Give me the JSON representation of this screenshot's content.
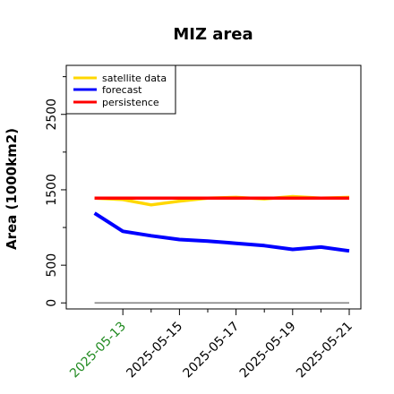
{
  "chart_data": {
    "type": "line",
    "title": "MIZ area",
    "ylabel": "Area (1000km2)",
    "xlabel": "",
    "x": [
      "2025-05-12",
      "2025-05-13",
      "2025-05-14",
      "2025-05-15",
      "2025-05-16",
      "2025-05-17",
      "2025-05-18",
      "2025-05-19",
      "2025-05-20",
      "2025-05-21"
    ],
    "xticks": [
      "2025-05-13",
      "2025-05-15",
      "2025-05-17",
      "2025-05-19",
      "2025-05-21"
    ],
    "xtick_minor": [
      "2025-05-14",
      "2025-05-16",
      "2025-05-18",
      "2025-05-20"
    ],
    "xtick_colors": [
      "#228B22",
      "#000000",
      "#000000",
      "#000000",
      "#000000"
    ],
    "xlim": [
      "2025-05-11",
      "2025-05-21"
    ],
    "yticks": [
      0,
      500,
      1500,
      2500
    ],
    "ytick_minor": [
      1000,
      2000,
      3000
    ],
    "ylim": [
      -80,
      3150
    ],
    "grid": false,
    "legend_position": "top-left",
    "series": [
      {
        "name": "satellite data",
        "color": "#FFD700",
        "values": [
          1390,
          1370,
          1300,
          1350,
          1390,
          1400,
          1380,
          1410,
          1390,
          1400
        ]
      },
      {
        "name": "forecast",
        "color": "#0000FF",
        "values": [
          1190,
          950,
          890,
          840,
          820,
          790,
          760,
          710,
          740,
          690
        ]
      },
      {
        "name": "persistence",
        "color": "#FF0000",
        "values": [
          1390,
          1390,
          1390,
          1390,
          1390,
          1390,
          1390,
          1390,
          1390,
          1390
        ]
      }
    ],
    "baseline": {
      "value": 0,
      "color": "#808080"
    }
  }
}
